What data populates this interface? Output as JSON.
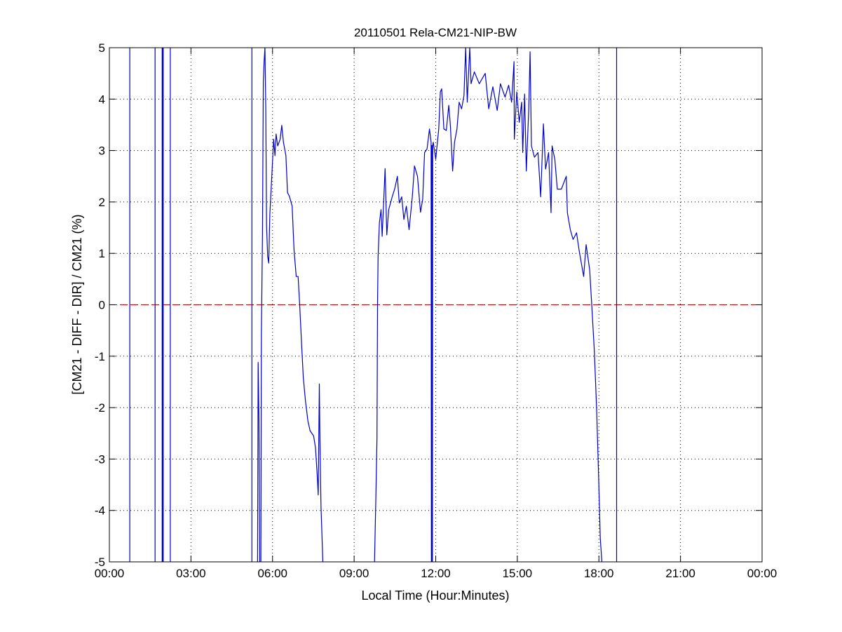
{
  "chart_data": {
    "type": "line",
    "title": "20110501 Rela-CM21-NIP-BW",
    "xlabel": "Local Time (Hour:Minutes)",
    "ylabel": "[CM21 - DIFF - DIR] / CM21 (%)",
    "xlim": [
      0,
      24
    ],
    "ylim": [
      -5,
      5
    ],
    "x_unit": "hours",
    "xticks": [
      0,
      3,
      6,
      9,
      12,
      15,
      18,
      21,
      24
    ],
    "xtick_labels": [
      "00:00",
      "03:00",
      "06:00",
      "09:00",
      "12:00",
      "15:00",
      "18:00",
      "21:00",
      "00:00"
    ],
    "yticks": [
      -5,
      -4,
      -3,
      -2,
      -1,
      0,
      1,
      2,
      3,
      4,
      5
    ],
    "ytick_labels": [
      "-5",
      "-4",
      "-3",
      "-2",
      "-1",
      "0",
      "1",
      "2",
      "3",
      "4",
      "5"
    ],
    "grid": true,
    "grid_style": "dotted",
    "reference_line": {
      "y": 0,
      "color": "#cc0000",
      "style": "dashed"
    },
    "series_color": "#0000cc",
    "segments": [
      [
        [
          0.75,
          -5
        ],
        [
          0.75,
          5
        ]
      ],
      [
        [
          1.68,
          -5
        ],
        [
          1.68,
          5
        ]
      ],
      [
        [
          1.94,
          -5
        ],
        [
          1.94,
          5
        ],
        [
          1.96,
          5
        ],
        [
          1.96,
          -5
        ],
        [
          1.98,
          -5
        ],
        [
          1.98,
          5
        ]
      ],
      [
        [
          2.24,
          -5
        ],
        [
          2.24,
          5
        ]
      ],
      [
        [
          5.24,
          -5
        ],
        [
          5.24,
          5
        ]
      ],
      [
        [
          5.45,
          -5
        ],
        [
          5.47,
          -1.12
        ],
        [
          5.5,
          -2.26
        ],
        [
          5.53,
          -5
        ]
      ],
      [
        [
          5.57,
          -5
        ],
        [
          5.59,
          -0.63
        ],
        [
          5.63,
          1.4
        ],
        [
          5.66,
          4.33
        ],
        [
          5.69,
          4.73
        ],
        [
          5.72,
          5
        ],
        [
          5.75,
          3.81
        ],
        [
          5.78,
          1.53
        ],
        [
          5.82,
          0.94
        ],
        [
          5.86,
          0.81
        ],
        [
          5.9,
          1.76
        ],
        [
          5.93,
          2.05
        ],
        [
          5.99,
          2.7
        ],
        [
          6.04,
          3.22
        ],
        [
          6.09,
          2.9
        ],
        [
          6.13,
          3.32
        ],
        [
          6.19,
          3.09
        ],
        [
          6.28,
          3.22
        ],
        [
          6.34,
          3.49
        ],
        [
          6.4,
          3.16
        ],
        [
          6.49,
          2.9
        ],
        [
          6.55,
          2.18
        ],
        [
          6.62,
          2.11
        ],
        [
          6.72,
          1.92
        ],
        [
          6.79,
          1.07
        ],
        [
          6.87,
          0.55
        ],
        [
          6.94,
          0.55
        ],
        [
          7.0,
          -0.01
        ],
        [
          7.06,
          -0.69
        ],
        [
          7.13,
          -1.41
        ],
        [
          7.21,
          -1.87
        ],
        [
          7.3,
          -2.26
        ],
        [
          7.38,
          -2.45
        ],
        [
          7.51,
          -2.55
        ],
        [
          7.58,
          -2.78
        ],
        [
          7.64,
          -3.3
        ],
        [
          7.68,
          -3.7
        ],
        [
          7.72,
          -1.54
        ],
        [
          7.74,
          -2.45
        ],
        [
          7.78,
          -3.89
        ],
        [
          7.85,
          -5
        ]
      ],
      [
        [
          9.75,
          -5
        ],
        [
          9.8,
          -3.7
        ],
        [
          9.84,
          -2.6
        ],
        [
          9.86,
          0
        ],
        [
          9.88,
          0.94
        ],
        [
          9.93,
          1.6
        ],
        [
          9.99,
          1.85
        ],
        [
          10.03,
          1.33
        ],
        [
          10.14,
          2.65
        ],
        [
          10.2,
          1.36
        ],
        [
          10.27,
          1.85
        ],
        [
          10.4,
          2.1
        ],
        [
          10.49,
          2.25
        ],
        [
          10.59,
          2.5
        ],
        [
          10.66,
          1.98
        ],
        [
          10.75,
          2.1
        ],
        [
          10.83,
          1.66
        ],
        [
          10.92,
          1.92
        ],
        [
          11.02,
          1.46
        ],
        [
          11.14,
          2.1
        ],
        [
          11.22,
          2.7
        ],
        [
          11.33,
          2.5
        ],
        [
          11.44,
          1.8
        ],
        [
          11.52,
          2.05
        ],
        [
          11.59,
          2.96
        ],
        [
          11.68,
          3.03
        ],
        [
          11.77,
          3.42
        ],
        [
          11.83,
          3.16
        ],
        [
          11.84,
          -5
        ],
        [
          11.85,
          -5
        ],
        [
          11.86,
          3.1
        ],
        [
          11.87,
          -5
        ],
        [
          11.88,
          -5
        ],
        [
          11.89,
          3.1
        ],
        [
          11.91,
          3.16
        ],
        [
          12.0,
          2.83
        ],
        [
          12.11,
          3.42
        ],
        [
          12.17,
          4.14
        ],
        [
          12.22,
          4.2
        ],
        [
          12.3,
          3.42
        ],
        [
          12.39,
          3.39
        ],
        [
          12.48,
          3.88
        ],
        [
          12.54,
          3.49
        ],
        [
          12.62,
          2.6
        ],
        [
          12.69,
          3.16
        ],
        [
          12.78,
          3.42
        ],
        [
          12.86,
          3.94
        ],
        [
          12.95,
          3.81
        ],
        [
          13.04,
          4.07
        ],
        [
          13.1,
          5
        ],
        [
          13.16,
          3.94
        ],
        [
          13.25,
          5
        ],
        [
          13.3,
          4.3
        ],
        [
          13.42,
          4.53
        ],
        [
          13.6,
          4.3
        ],
        [
          13.82,
          4.5
        ],
        [
          13.95,
          3.81
        ],
        [
          14.1,
          4.24
        ],
        [
          14.26,
          3.78
        ],
        [
          14.38,
          4.3
        ],
        [
          14.55,
          4.04
        ],
        [
          14.68,
          4.27
        ],
        [
          14.79,
          3.94
        ],
        [
          14.88,
          4.73
        ],
        [
          14.89,
          3.22
        ],
        [
          14.98,
          4.14
        ],
        [
          15.07,
          3.55
        ],
        [
          15.16,
          3.94
        ],
        [
          15.2,
          2.96
        ],
        [
          15.27,
          4.1
        ],
        [
          15.33,
          2.6
        ],
        [
          15.42,
          3.81
        ],
        [
          15.47,
          4.92
        ],
        [
          15.52,
          3.09
        ],
        [
          15.63,
          2.87
        ],
        [
          15.76,
          2.96
        ],
        [
          15.86,
          2.1
        ],
        [
          15.96,
          3.52
        ],
        [
          16.04,
          2.64
        ],
        [
          16.15,
          2.96
        ],
        [
          16.24,
          1.79
        ],
        [
          16.28,
          3.09
        ],
        [
          16.38,
          2.83
        ],
        [
          16.47,
          2.25
        ],
        [
          16.62,
          2.25
        ],
        [
          16.8,
          2.5
        ],
        [
          16.84,
          1.79
        ],
        [
          16.95,
          1.46
        ],
        [
          17.05,
          1.27
        ],
        [
          17.18,
          1.4
        ],
        [
          17.27,
          1.07
        ],
        [
          17.44,
          0.55
        ],
        [
          17.53,
          1.17
        ],
        [
          17.66,
          0.68
        ],
        [
          17.74,
          -0.04
        ],
        [
          17.83,
          -0.89
        ],
        [
          17.92,
          -2.06
        ],
        [
          17.99,
          -3.37
        ],
        [
          18.05,
          -4.54
        ],
        [
          18.11,
          -5
        ]
      ],
      [
        [
          18.65,
          -5
        ],
        [
          18.65,
          5
        ]
      ]
    ]
  }
}
